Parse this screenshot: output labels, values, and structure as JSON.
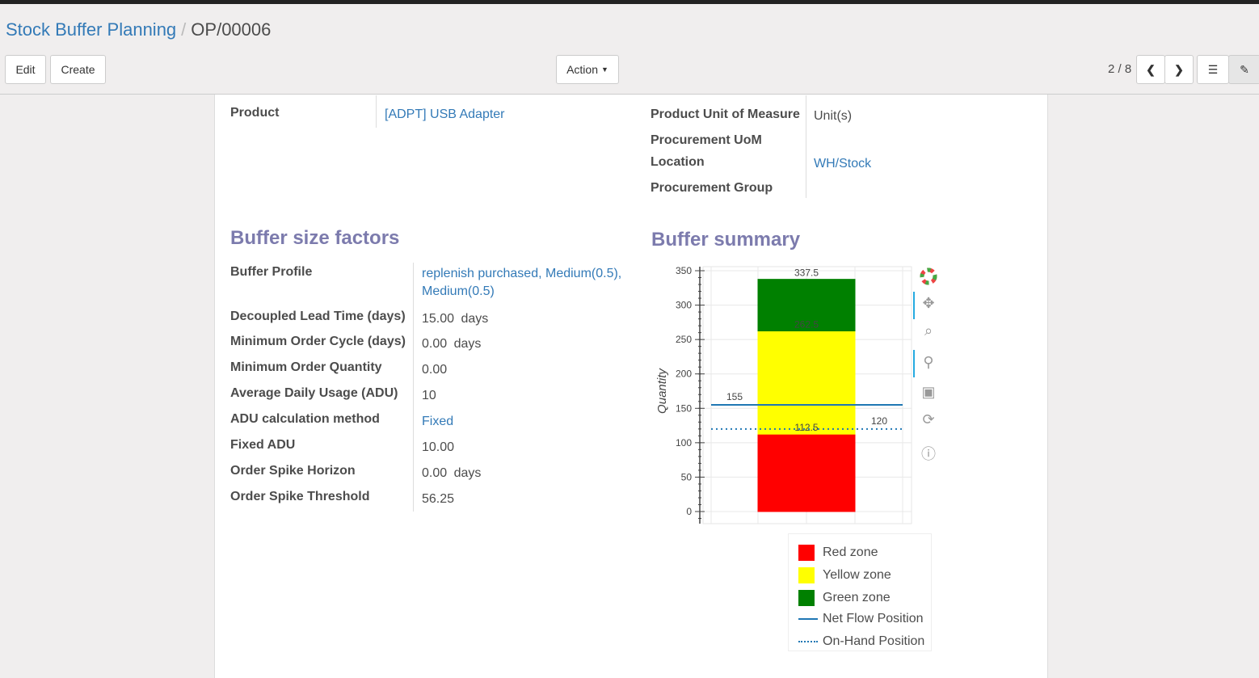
{
  "breadcrumb": {
    "parent": "Stock Buffer Planning",
    "current": "OP/00006"
  },
  "toolbar": {
    "edit": "Edit",
    "create": "Create",
    "action": "Action",
    "pager": "2 / 8"
  },
  "header_fields": {
    "product_label": "Product",
    "product_value": "[ADPT] USB Adapter",
    "uom_label": "Product Unit of Measure",
    "uom_value": "Unit(s)",
    "proc_uom_label": "Procurement UoM",
    "location_label": "Location",
    "location_value": "WH/Stock",
    "group_label": "Procurement Group"
  },
  "factors": {
    "title": "Buffer size factors",
    "rows": [
      {
        "label": "Buffer Profile",
        "value": "replenish purchased, Medium(0.5), Medium(0.5)",
        "link": true
      },
      {
        "label": "Decoupled Lead Time (days)",
        "value": "15.00",
        "unit": "days"
      },
      {
        "label": "Minimum Order Cycle (days)",
        "value": "0.00",
        "unit": "days"
      },
      {
        "label": "Minimum Order Quantity",
        "value": "0.00"
      },
      {
        "label": "Average Daily Usage (ADU)",
        "value": "10"
      },
      {
        "label": "ADU calculation method",
        "value": "Fixed",
        "link": true
      },
      {
        "label": "Fixed ADU",
        "value": "10.00"
      },
      {
        "label": "Order Spike Horizon",
        "value": "0.00",
        "unit": "days"
      },
      {
        "label": "Order Spike Threshold",
        "value": "56.25"
      }
    ]
  },
  "summary": {
    "title": "Buffer summary"
  },
  "chart_data": {
    "type": "bar",
    "stacked": true,
    "ylabel": "Quantity",
    "ylim": [
      0,
      350
    ],
    "yticks": [
      0,
      50,
      100,
      150,
      200,
      250,
      300,
      350
    ],
    "grid": true,
    "series": [
      {
        "name": "Red zone",
        "from": 0,
        "to": 112.5,
        "color": "#ff0000",
        "label": "112.5"
      },
      {
        "name": "Yellow zone",
        "from": 112.5,
        "to": 262.5,
        "color": "#ffff00",
        "label": "262.5"
      },
      {
        "name": "Green zone",
        "from": 262.5,
        "to": 337.5,
        "color": "#008000",
        "label": "337.5"
      }
    ],
    "lines": [
      {
        "name": "Net Flow Position",
        "value": 155,
        "style": "solid",
        "color": "#1f77b4",
        "label": "155"
      },
      {
        "name": "On-Hand Position",
        "value": 120,
        "style": "dotted",
        "color": "#1f77b4",
        "label": "120"
      }
    ],
    "legend": "bottom"
  }
}
